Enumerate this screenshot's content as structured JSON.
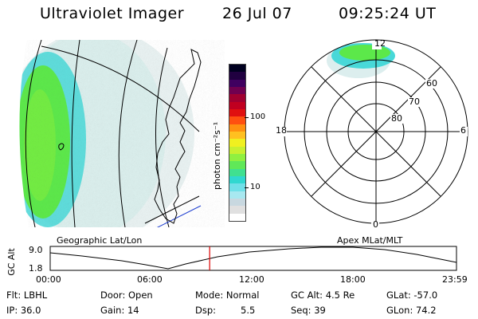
{
  "header": {
    "instrument": "Ultraviolet Imager",
    "date": "26 Jul 07",
    "time": "09:25:24 UT"
  },
  "map_panel": {
    "label": "Geographic Lat/Lon"
  },
  "polar_panel": {
    "label": "Apex MLat/MLT",
    "mlt_labels": {
      "top": "12",
      "left": "18",
      "right": "6",
      "bottom": "0"
    },
    "mlat_rings": [
      "60",
      "70",
      "80"
    ]
  },
  "colorbar": {
    "unit": "photon cm⁻²s⁻¹",
    "tick_100": "100",
    "tick_10": "10",
    "colors": [
      "#ffffff",
      "#e0e0e0",
      "#c8d8e0",
      "#a8e8f0",
      "#70e0e8",
      "#30d8d0",
      "#40e090",
      "#60e858",
      "#90f040",
      "#c8f030",
      "#f0f020",
      "#ffc020",
      "#ff9010",
      "#ff5010",
      "#e01010",
      "#c00020",
      "#a00030",
      "#700050",
      "#400060",
      "#200040",
      "#000020"
    ]
  },
  "altitude_plot": {
    "ylabel": "GC Alt",
    "yticks": [
      "9.0",
      "1.8"
    ],
    "xticks": [
      "00:00",
      "06:00",
      "12:00",
      "18:00",
      "23:59"
    ],
    "current_time_marker": "09:25",
    "current_time_hours": 9.42
  },
  "status": {
    "flt": "Flt: LBHL",
    "door": "Door: Open",
    "mode": "Mode: Normal",
    "gc_alt": "GC Alt: 4.5 Re",
    "glat": "GLat: -57.0",
    "ip": "IP: 36.0",
    "gain": "Gain: 14",
    "dsp_label": "Dsp:",
    "dsp_value": "5.5",
    "seq": "Seq: 39",
    "glon": "GLon: 74.2"
  },
  "colors": {
    "marker": "#dd0000",
    "aurora_green": "#5ce84a",
    "aurora_cyan": "#38d8d0"
  }
}
